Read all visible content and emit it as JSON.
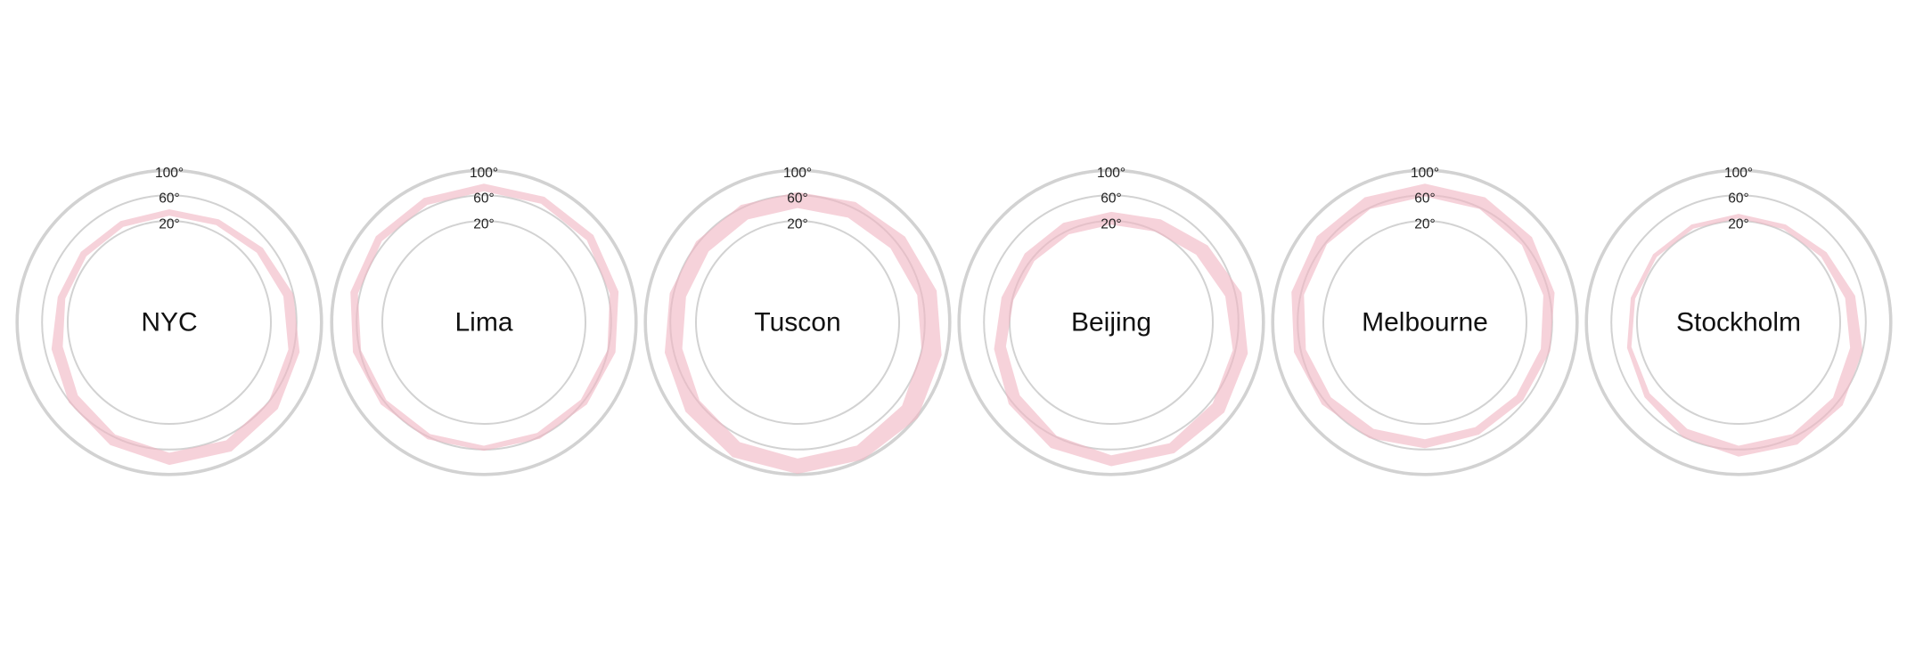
{
  "chart_data": {
    "type": "radial-band",
    "radial_axis": {
      "tick_values": [
        20,
        60,
        100
      ],
      "tick_labels": [
        "20°",
        "60°",
        "100°"
      ]
    },
    "band_color": "#f0b6c4",
    "ring_color": "#d2d2d2",
    "grid": true,
    "cities": [
      {
        "name": "NYC",
        "low": [
          28,
          30,
          36,
          44,
          52,
          60,
          66,
          65,
          56,
          44,
          32,
          28,
          27,
          27
        ],
        "high": [
          38,
          40,
          48,
          60,
          70,
          78,
          85,
          84,
          74,
          62,
          50,
          40,
          38,
          37
        ]
      },
      {
        "name": "Lima",
        "low": [
          66,
          67,
          67,
          63,
          59,
          55,
          53,
          54,
          55,
          56,
          58,
          63,
          65,
          65
        ],
        "high": [
          78,
          79,
          80,
          77,
          72,
          67,
          63,
          62,
          64,
          67,
          71,
          75,
          77,
          77
        ]
      },
      {
        "name": "Tuscon",
        "low": [
          40,
          43,
          47,
          53,
          60,
          70,
          75,
          74,
          69,
          57,
          46,
          40,
          39,
          40
        ],
        "high": [
          65,
          70,
          76,
          84,
          92,
          101,
          99,
          98,
          95,
          85,
          74,
          66,
          64,
          65
        ]
      },
      {
        "name": "Beijing",
        "low": [
          14,
          19,
          31,
          44,
          56,
          64,
          71,
          69,
          58,
          44,
          30,
          18,
          15,
          14
        ],
        "high": [
          34,
          40,
          54,
          70,
          80,
          87,
          88,
          86,
          79,
          66,
          49,
          37,
          34,
          34
        ]
      },
      {
        "name": "Melbourne",
        "low": [
          58,
          58,
          55,
          51,
          47,
          44,
          43,
          44,
          46,
          49,
          52,
          55,
          57,
          58
        ],
        "high": [
          78,
          78,
          75,
          69,
          62,
          57,
          56,
          58,
          62,
          67,
          71,
          75,
          77,
          78
        ]
      },
      {
        "name": "Stockholm",
        "low": [
          24,
          23,
          26,
          32,
          40,
          50,
          55,
          54,
          46,
          39,
          33,
          27,
          25,
          24
        ],
        "high": [
          31,
          31,
          37,
          48,
          60,
          69,
          73,
          71,
          61,
          49,
          40,
          34,
          32,
          31
        ]
      }
    ]
  }
}
